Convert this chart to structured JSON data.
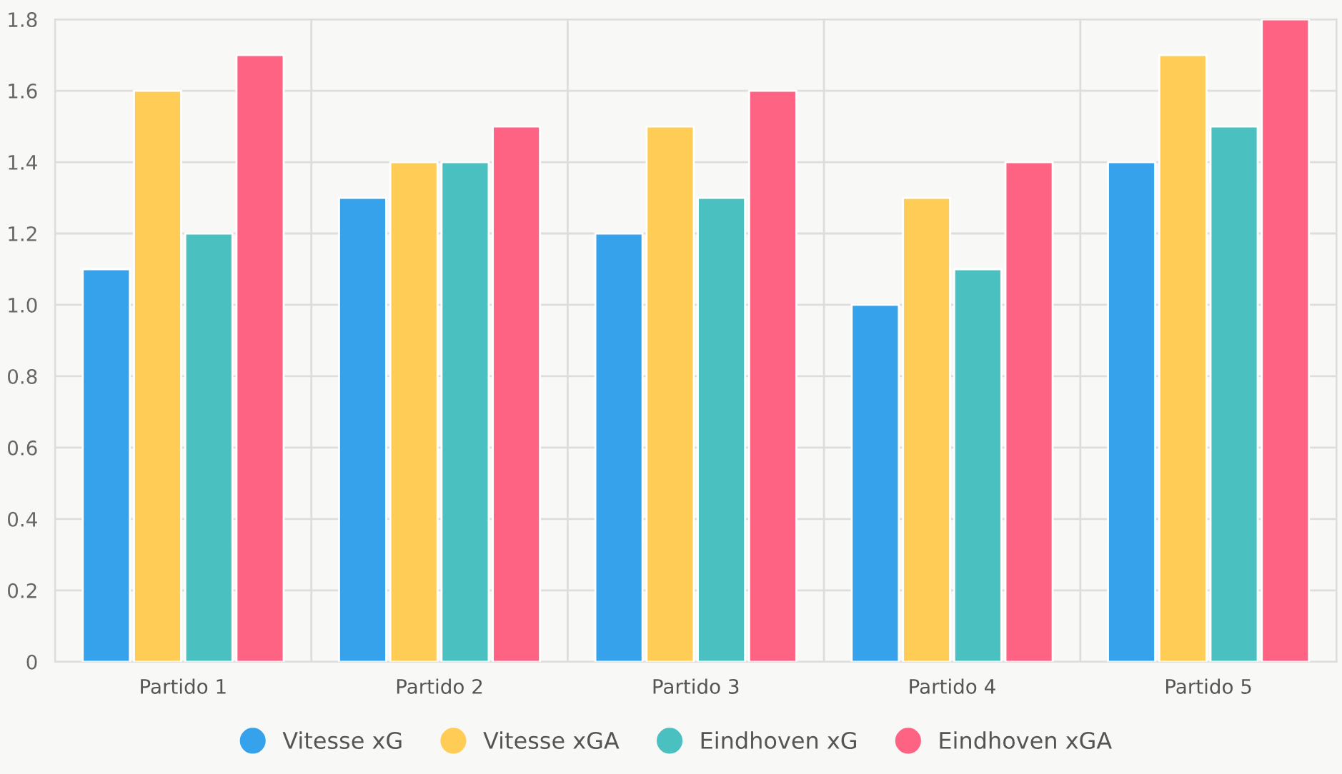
{
  "chart_data": {
    "type": "bar",
    "categories": [
      "Partido 1",
      "Partido 2",
      "Partido 3",
      "Partido 4",
      "Partido 5"
    ],
    "series": [
      {
        "name": "Vitesse xG",
        "color": "#36a2eb",
        "values": [
          1.1,
          1.3,
          1.2,
          1.0,
          1.4
        ]
      },
      {
        "name": "Vitesse xGA",
        "color": "#ffcd56",
        "values": [
          1.6,
          1.4,
          1.5,
          1.3,
          1.7
        ]
      },
      {
        "name": "Eindhoven xG",
        "color": "#4bc0c0",
        "values": [
          1.2,
          1.4,
          1.3,
          1.1,
          1.5
        ]
      },
      {
        "name": "Eindhoven xGA",
        "color": "#ff6384",
        "values": [
          1.7,
          1.5,
          1.6,
          1.4,
          1.8
        ]
      }
    ],
    "ylim": [
      0,
      1.8
    ],
    "yticks": [
      0,
      0.2,
      0.4,
      0.6,
      0.8,
      {
        "value": 1,
        "label": "1.0"
      },
      1.2,
      1.4,
      1.6,
      1.8
    ],
    "grid": true,
    "legend": "bottom",
    "marker": "circle"
  }
}
